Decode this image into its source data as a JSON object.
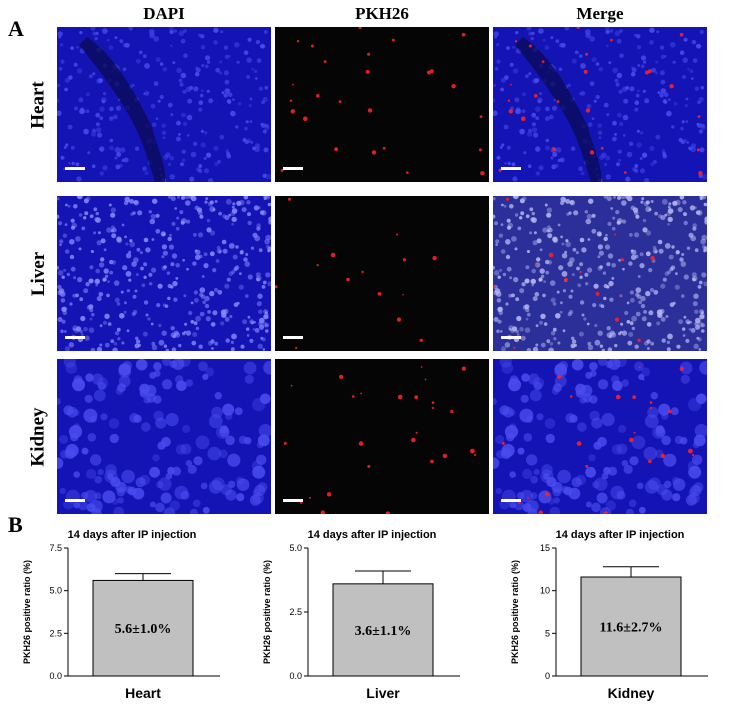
{
  "panel_a": {
    "letter": "A",
    "columns": [
      "DAPI",
      "PKH26",
      "Merge"
    ],
    "rows": [
      "Heart",
      "Liver",
      "Kidney"
    ]
  },
  "panel_b": {
    "letter": "B"
  },
  "colors": {
    "dapi": "#1a1ad8",
    "pkh26": "#ff2020",
    "bar": "#c0c0c0"
  },
  "chart_data": [
    {
      "type": "bar",
      "title": "14 days after IP injection",
      "ylabel": "PKH26 positive ratio (%)",
      "categories": [
        "Heart"
      ],
      "values": [
        5.6
      ],
      "error": [
        0.4
      ],
      "value_label": "5.6±1.0%",
      "ylim": [
        0,
        7.5
      ],
      "yticks": [
        "0.0",
        "2.5",
        "5.0",
        "7.5"
      ],
      "ytick_values": [
        0,
        2.5,
        5.0,
        7.5
      ]
    },
    {
      "type": "bar",
      "title": "14 days after IP injection",
      "ylabel": "PKH26 positive ratio (%)",
      "categories": [
        "Liver"
      ],
      "values": [
        3.6
      ],
      "error": [
        0.5
      ],
      "value_label": "3.6±1.1%",
      "ylim": [
        0,
        5.0
      ],
      "yticks": [
        "0.0",
        "2.5",
        "5.0"
      ],
      "ytick_values": [
        0,
        2.5,
        5.0
      ]
    },
    {
      "type": "bar",
      "title": "14 days after IP injection",
      "ylabel": "PKH26 positive ratio (%)",
      "categories": [
        "Kidney"
      ],
      "values": [
        11.6
      ],
      "error": [
        1.2
      ],
      "value_label": "11.6±2.7%",
      "ylim": [
        0,
        15
      ],
      "yticks": [
        "0",
        "5",
        "10",
        "15"
      ],
      "ytick_values": [
        0,
        5,
        10,
        15
      ]
    }
  ]
}
